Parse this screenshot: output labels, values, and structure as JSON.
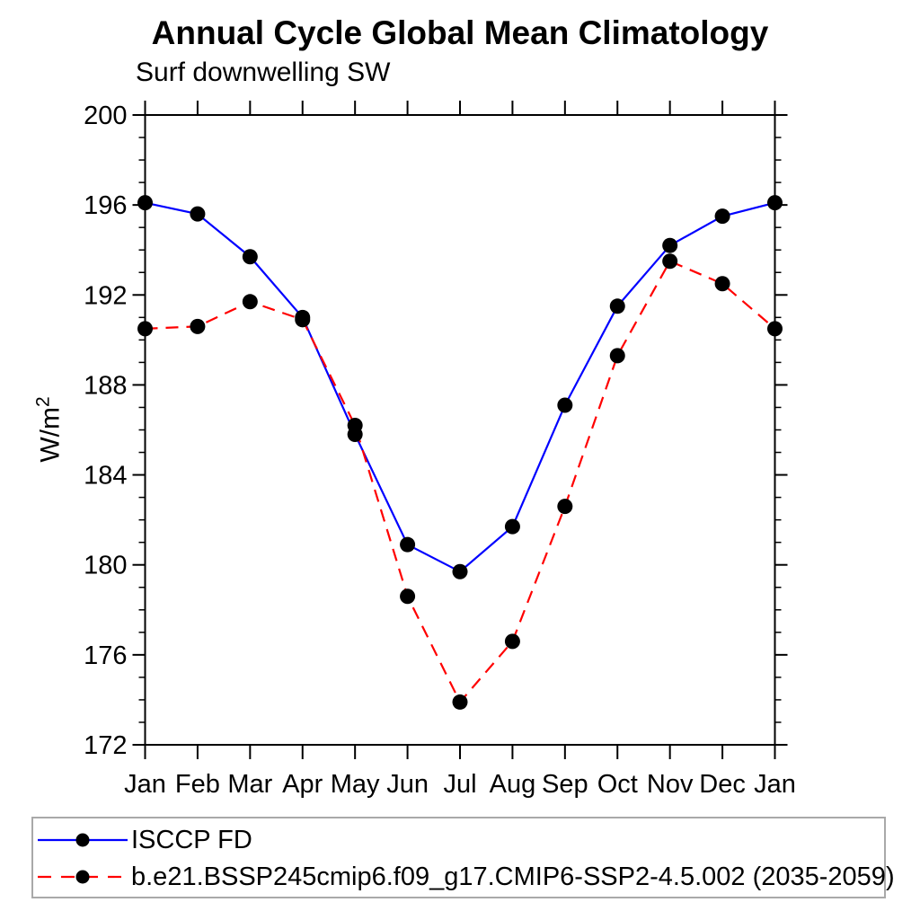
{
  "title": "Annual Cycle Global Mean Climatology",
  "subtitle": "Surf downwelling SW",
  "ylabel": {
    "text": "W/m",
    "sup": "2"
  },
  "chart_data": {
    "type": "line",
    "categories": [
      "Jan",
      "Feb",
      "Mar",
      "Apr",
      "May",
      "Jun",
      "Jul",
      "Aug",
      "Sep",
      "Oct",
      "Nov",
      "Dec",
      "Jan"
    ],
    "series": [
      {
        "name": "ISCCP FD",
        "color": "#0000ff",
        "style": "solid",
        "marker": "black-dot",
        "values": [
          196.1,
          195.6,
          193.7,
          191.0,
          185.8,
          180.9,
          179.7,
          181.7,
          187.1,
          191.5,
          194.2,
          195.5,
          196.1
        ]
      },
      {
        "name": "b.e21.BSSP245cmip6.f09_g17.CMIP6-SSP2-4.5.002 (2035-2059)",
        "color": "#ff0000",
        "style": "dashed",
        "marker": "black-dot",
        "values": [
          190.5,
          190.6,
          191.7,
          190.9,
          186.2,
          178.6,
          173.9,
          176.6,
          182.6,
          189.3,
          193.5,
          192.5,
          190.5
        ]
      }
    ],
    "xlabel": "",
    "ylabel": "W/m2",
    "ylim": [
      172,
      200
    ],
    "y_ticks_major": [
      172,
      176,
      180,
      184,
      188,
      192,
      196,
      200
    ],
    "y_minor_step": 1,
    "grid": false,
    "legend_position": "bottom",
    "marker_color": "#000000",
    "axis_color": "#000000"
  }
}
